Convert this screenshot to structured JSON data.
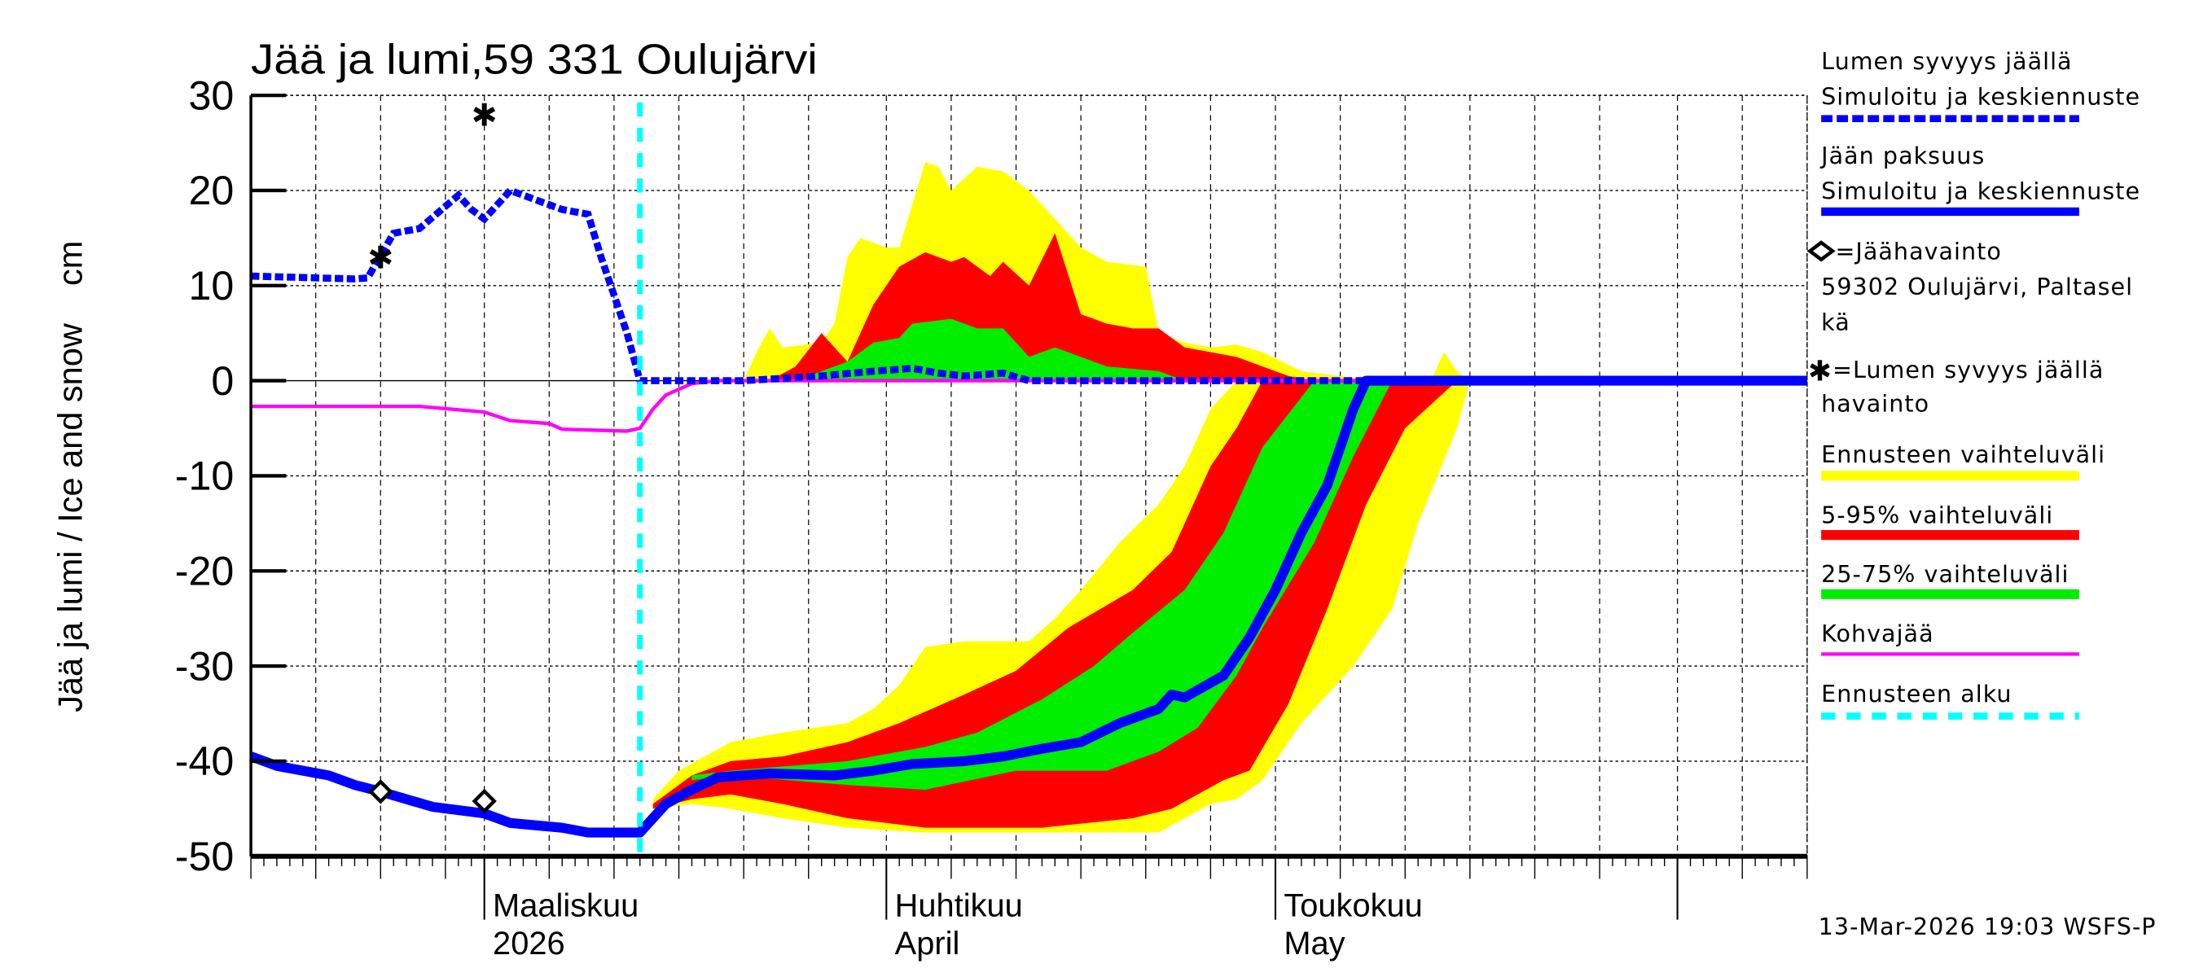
{
  "chart_data": {
    "type": "area",
    "title": "Jää ja lumi,59 331 Oulujärvi",
    "ylabel": "Jää ja lumi / Ice and snow    cm",
    "ylim": [
      -50,
      30
    ],
    "yticks": [
      30,
      20,
      10,
      0,
      -10,
      -20,
      -30,
      -40,
      -50
    ],
    "xlim": [
      "2026-02-11",
      "2026-06-11"
    ],
    "x_month_labels": [
      {
        "date": "2026-03-01",
        "line1": "Maaliskuu",
        "line2": "2026"
      },
      {
        "date": "2026-04-01",
        "line1": "Huhtikuu",
        "line2": "April"
      },
      {
        "date": "2026-05-01",
        "line1": "Toukokuu",
        "line2": "May"
      }
    ],
    "grid": true,
    "legend_placement": "right",
    "forecast_start": "2026-03-13",
    "colors": {
      "snow": "#0000ff",
      "ice": "#0000ff",
      "range_full": "#ffff00",
      "range_5_95": "#ff0000",
      "range_25_75": "#00ee00",
      "slush": "#ff00ff",
      "forecast_start": "#00ffff"
    },
    "series": {
      "snow_depth": [
        [
          "2026-02-11",
          11
        ],
        [
          "2026-02-19",
          10.7
        ],
        [
          "2026-02-20",
          10.8
        ],
        [
          "2026-02-22",
          15.5
        ],
        [
          "2026-02-24",
          16
        ],
        [
          "2026-02-27",
          19.5
        ],
        [
          "2026-02-28",
          18
        ],
        [
          "2026-03-01",
          17
        ],
        [
          "2026-03-03",
          20
        ],
        [
          "2026-03-05",
          19
        ],
        [
          "2026-03-07",
          18
        ],
        [
          "2026-03-09",
          17.5
        ],
        [
          "2026-03-10",
          13
        ],
        [
          "2026-03-12",
          5
        ],
        [
          "2026-03-13",
          0
        ],
        [
          "2026-03-21",
          0
        ],
        [
          "2026-03-27",
          0.5
        ],
        [
          "2026-03-31",
          1
        ],
        [
          "2026-04-03",
          1.3
        ],
        [
          "2026-04-05",
          0.8
        ],
        [
          "2026-04-07",
          0.5
        ],
        [
          "2026-04-10",
          0.8
        ],
        [
          "2026-04-12",
          0
        ],
        [
          "2026-06-11",
          0
        ]
      ],
      "ice_thickness": [
        [
          "2026-02-11",
          -39.5
        ],
        [
          "2026-02-13",
          -40.5
        ],
        [
          "2026-02-17",
          -41.5
        ],
        [
          "2026-02-19",
          -42.5
        ],
        [
          "2026-02-21",
          -43.2
        ],
        [
          "2026-02-25",
          -44.8
        ],
        [
          "2026-03-01",
          -45.5
        ],
        [
          "2026-03-03",
          -46.5
        ],
        [
          "2026-03-07",
          -47
        ],
        [
          "2026-03-09",
          -47.5
        ],
        [
          "2026-03-13",
          -47.5
        ],
        [
          "2026-03-14",
          -46
        ],
        [
          "2026-03-15",
          -44.5
        ],
        [
          "2026-03-17",
          -43
        ],
        [
          "2026-03-19",
          -41.7
        ],
        [
          "2026-03-23",
          -41.3
        ],
        [
          "2026-03-28",
          -41.5
        ],
        [
          "2026-03-31",
          -41
        ],
        [
          "2026-04-03",
          -40.3
        ],
        [
          "2026-04-07",
          -40
        ],
        [
          "2026-04-10",
          -39.5
        ],
        [
          "2026-04-13",
          -38.7
        ],
        [
          "2026-04-16",
          -38
        ],
        [
          "2026-04-19",
          -36
        ],
        [
          "2026-04-22",
          -34.5
        ],
        [
          "2026-04-23",
          -33
        ],
        [
          "2026-04-24",
          -33.3
        ],
        [
          "2026-04-27",
          -31
        ],
        [
          "2026-04-29",
          -27
        ],
        [
          "2026-05-01",
          -22
        ],
        [
          "2026-05-03",
          -16
        ],
        [
          "2026-05-05",
          -11
        ],
        [
          "2026-05-07",
          -3
        ],
        [
          "2026-05-08",
          0
        ],
        [
          "2026-06-11",
          0
        ]
      ],
      "slush_ice": [
        [
          "2026-02-11",
          -2.7
        ],
        [
          "2026-02-24",
          -2.7
        ],
        [
          "2026-03-01",
          -3.3
        ],
        [
          "2026-03-03",
          -4.2
        ],
        [
          "2026-03-06",
          -4.5
        ],
        [
          "2026-03-07",
          -5.1
        ],
        [
          "2026-03-12",
          -5.3
        ],
        [
          "2026-03-13",
          -5
        ],
        [
          "2026-03-14",
          -3
        ],
        [
          "2026-03-15",
          -1.5
        ],
        [
          "2026-03-17",
          -0.3
        ],
        [
          "2026-03-19",
          0
        ],
        [
          "2026-06-11",
          0
        ]
      ],
      "snow_observations": [
        [
          "2026-02-21",
          13
        ],
        [
          "2026-03-01",
          28
        ]
      ],
      "ice_observations": [
        [
          "2026-02-21",
          -43.2
        ],
        [
          "2026-03-01",
          -44.2
        ]
      ]
    },
    "bands": {
      "snow_full_top": [
        [
          "2026-03-13",
          0
        ],
        [
          "2026-03-21",
          0
        ],
        [
          "2026-03-22",
          3
        ],
        [
          "2026-03-23",
          5.5
        ],
        [
          "2026-03-24",
          3.5
        ],
        [
          "2026-03-27",
          4
        ],
        [
          "2026-03-28",
          6
        ],
        [
          "2026-03-29",
          13
        ],
        [
          "2026-03-30",
          15
        ],
        [
          "2026-04-01",
          14
        ],
        [
          "2026-04-02",
          14
        ],
        [
          "2026-04-04",
          23
        ],
        [
          "2026-04-05",
          22.5
        ],
        [
          "2026-04-06",
          20
        ],
        [
          "2026-04-08",
          22.5
        ],
        [
          "2026-04-10",
          22
        ],
        [
          "2026-04-12",
          20
        ],
        [
          "2026-04-14",
          17
        ],
        [
          "2026-04-16",
          14
        ],
        [
          "2026-04-18",
          12.5
        ],
        [
          "2026-04-21",
          12
        ],
        [
          "2026-04-22",
          5
        ],
        [
          "2026-04-24",
          4
        ],
        [
          "2026-04-26",
          3.5
        ],
        [
          "2026-04-28",
          3.8
        ],
        [
          "2026-04-30",
          3
        ],
        [
          "2026-05-03",
          1
        ],
        [
          "2026-05-06",
          0.5
        ],
        [
          "2026-05-09",
          0
        ],
        [
          "2026-05-13",
          0
        ],
        [
          "2026-05-14",
          3
        ],
        [
          "2026-05-15",
          1
        ],
        [
          "2026-05-16",
          0
        ]
      ],
      "snow_5_95_top": [
        [
          "2026-03-23",
          0
        ],
        [
          "2026-03-25",
          1.5
        ],
        [
          "2026-03-27",
          5
        ],
        [
          "2026-03-29",
          2
        ],
        [
          "2026-03-31",
          8
        ],
        [
          "2026-04-02",
          12
        ],
        [
          "2026-04-04",
          13.5
        ],
        [
          "2026-04-06",
          12.5
        ],
        [
          "2026-04-07",
          13
        ],
        [
          "2026-04-09",
          11
        ],
        [
          "2026-04-10",
          12.5
        ],
        [
          "2026-04-12",
          10
        ],
        [
          "2026-04-14",
          15.5
        ],
        [
          "2026-04-16",
          7
        ],
        [
          "2026-04-18",
          6
        ],
        [
          "2026-04-20",
          5.5
        ],
        [
          "2026-04-22",
          5.5
        ],
        [
          "2026-04-24",
          3.5
        ],
        [
          "2026-04-26",
          3
        ],
        [
          "2026-04-28",
          2.5
        ],
        [
          "2026-04-30",
          1.5
        ],
        [
          "2026-05-02",
          0.5
        ],
        [
          "2026-05-04",
          0
        ]
      ],
      "snow_25_75_top": [
        [
          "2026-03-26",
          0.5
        ],
        [
          "2026-03-29",
          2
        ],
        [
          "2026-03-31",
          4
        ],
        [
          "2026-04-02",
          4.5
        ],
        [
          "2026-04-03",
          6
        ],
        [
          "2026-04-06",
          6.5
        ],
        [
          "2026-04-08",
          5.5
        ],
        [
          "2026-04-10",
          5.5
        ],
        [
          "2026-04-12",
          2.5
        ],
        [
          "2026-04-14",
          3.5
        ],
        [
          "2026-04-16",
          2.5
        ],
        [
          "2026-04-18",
          1.5
        ],
        [
          "2026-04-22",
          1
        ],
        [
          "2026-04-24",
          0
        ]
      ],
      "ice_full_upper": [
        [
          "2026-03-14",
          -44
        ],
        [
          "2026-03-16",
          -41
        ],
        [
          "2026-03-20",
          -38
        ],
        [
          "2026-03-24",
          -37
        ],
        [
          "2026-03-29",
          -36
        ],
        [
          "2026-03-31",
          -34.5
        ],
        [
          "2026-04-02",
          -32
        ],
        [
          "2026-04-04",
          -28
        ],
        [
          "2026-04-07",
          -27.4
        ],
        [
          "2026-04-12",
          -27.4
        ],
        [
          "2026-04-14",
          -25
        ],
        [
          "2026-04-16",
          -22
        ],
        [
          "2026-04-19",
          -17
        ],
        [
          "2026-04-22",
          -13
        ],
        [
          "2026-04-24",
          -9
        ],
        [
          "2026-04-26",
          -3
        ],
        [
          "2026-04-28",
          0
        ]
      ],
      "ice_full_lower": [
        [
          "2026-03-14",
          -45
        ],
        [
          "2026-03-17",
          -44.5
        ],
        [
          "2026-03-20",
          -45
        ],
        [
          "2026-03-24",
          -46
        ],
        [
          "2026-03-29",
          -47
        ],
        [
          "2026-04-04",
          -47.5
        ],
        [
          "2026-04-14",
          -47.5
        ],
        [
          "2026-04-22",
          -47.5
        ],
        [
          "2026-04-24",
          -46
        ],
        [
          "2026-04-26",
          -44.5
        ],
        [
          "2026-04-28",
          -44
        ],
        [
          "2026-04-30",
          -42
        ],
        [
          "2026-05-03",
          -36
        ],
        [
          "2026-05-05",
          -33
        ],
        [
          "2026-05-07",
          -30
        ],
        [
          "2026-05-10",
          -24
        ],
        [
          "2026-05-12",
          -15
        ],
        [
          "2026-05-15",
          -5
        ],
        [
          "2026-05-16",
          0
        ]
      ],
      "ice_5_95_upper": [
        [
          "2026-03-14",
          -44.5
        ],
        [
          "2026-03-17",
          -41.5
        ],
        [
          "2026-03-20",
          -40
        ],
        [
          "2026-03-24",
          -39.5
        ],
        [
          "2026-03-29",
          -38
        ],
        [
          "2026-04-02",
          -36
        ],
        [
          "2026-04-07",
          -33
        ],
        [
          "2026-04-11",
          -30.5
        ],
        [
          "2026-04-15",
          -26
        ],
        [
          "2026-04-20",
          -22
        ],
        [
          "2026-04-23",
          -18
        ],
        [
          "2026-04-26",
          -9
        ],
        [
          "2026-04-28",
          -5
        ],
        [
          "2026-04-30",
          0
        ]
      ],
      "ice_5_95_lower": [
        [
          "2026-03-14",
          -45
        ],
        [
          "2026-03-17",
          -44
        ],
        [
          "2026-03-20",
          -43.5
        ],
        [
          "2026-03-24",
          -44.5
        ],
        [
          "2026-03-29",
          -46
        ],
        [
          "2026-04-04",
          -47
        ],
        [
          "2026-04-13",
          -47
        ],
        [
          "2026-04-20",
          -46
        ],
        [
          "2026-04-23",
          -45
        ],
        [
          "2026-04-27",
          -42
        ],
        [
          "2026-04-29",
          -41
        ],
        [
          "2026-05-02",
          -34
        ],
        [
          "2026-05-05",
          -24
        ],
        [
          "2026-05-08",
          -13
        ],
        [
          "2026-05-11",
          -5
        ],
        [
          "2026-05-15",
          0
        ]
      ],
      "ice_25_75_upper": [
        [
          "2026-03-17",
          -41.5
        ],
        [
          "2026-03-20",
          -41
        ],
        [
          "2026-03-29",
          -40
        ],
        [
          "2026-04-04",
          -38.5
        ],
        [
          "2026-04-08",
          -37
        ],
        [
          "2026-04-13",
          -33.5
        ],
        [
          "2026-04-17",
          -30
        ],
        [
          "2026-04-20",
          -26.5
        ],
        [
          "2026-04-24",
          -22
        ],
        [
          "2026-04-27",
          -16
        ],
        [
          "2026-04-30",
          -7
        ],
        [
          "2026-05-04",
          0
        ]
      ],
      "ice_25_75_lower": [
        [
          "2026-03-17",
          -42
        ],
        [
          "2026-03-20",
          -41.5
        ],
        [
          "2026-03-29",
          -42.5
        ],
        [
          "2026-04-04",
          -43
        ],
        [
          "2026-04-11",
          -41
        ],
        [
          "2026-04-18",
          -41
        ],
        [
          "2026-04-22",
          -39
        ],
        [
          "2026-04-25",
          -36.5
        ],
        [
          "2026-04-28",
          -31
        ],
        [
          "2026-04-30",
          -26
        ],
        [
          "2026-05-04",
          -17
        ],
        [
          "2026-05-07",
          -8
        ],
        [
          "2026-05-10",
          0
        ]
      ]
    },
    "legend": [
      {
        "line1": "Lumen syvyys jäällä",
        "line2": "Simuloitu ja keskiennuste",
        "style": "dashed-blue"
      },
      {
        "line1": "Jään paksuus",
        "line2": "Simuloitu ja keskiennuste",
        "style": "solid-blue"
      },
      {
        "line1": "=Jäähavainto",
        "line2": "59302 Oulujärvi, Paltasel",
        "line3": "kä",
        "style": "diamond"
      },
      {
        "line1": "=Lumen syvyys jäällä",
        "line2": "havainto",
        "style": "star"
      },
      {
        "line1": "Ennusteen vaihteluväli",
        "style": "yellow-bar"
      },
      {
        "line1": "5-95% vaihteluväli",
        "style": "red-bar"
      },
      {
        "line1": "25-75% vaihteluväli",
        "style": "green-bar"
      },
      {
        "line1": "Kohvajää",
        "style": "magenta-line"
      },
      {
        "line1": "Ennusteen alku",
        "style": "cyan-dashed"
      }
    ],
    "footer": "13-Mar-2026 19:03 WSFS-P"
  }
}
